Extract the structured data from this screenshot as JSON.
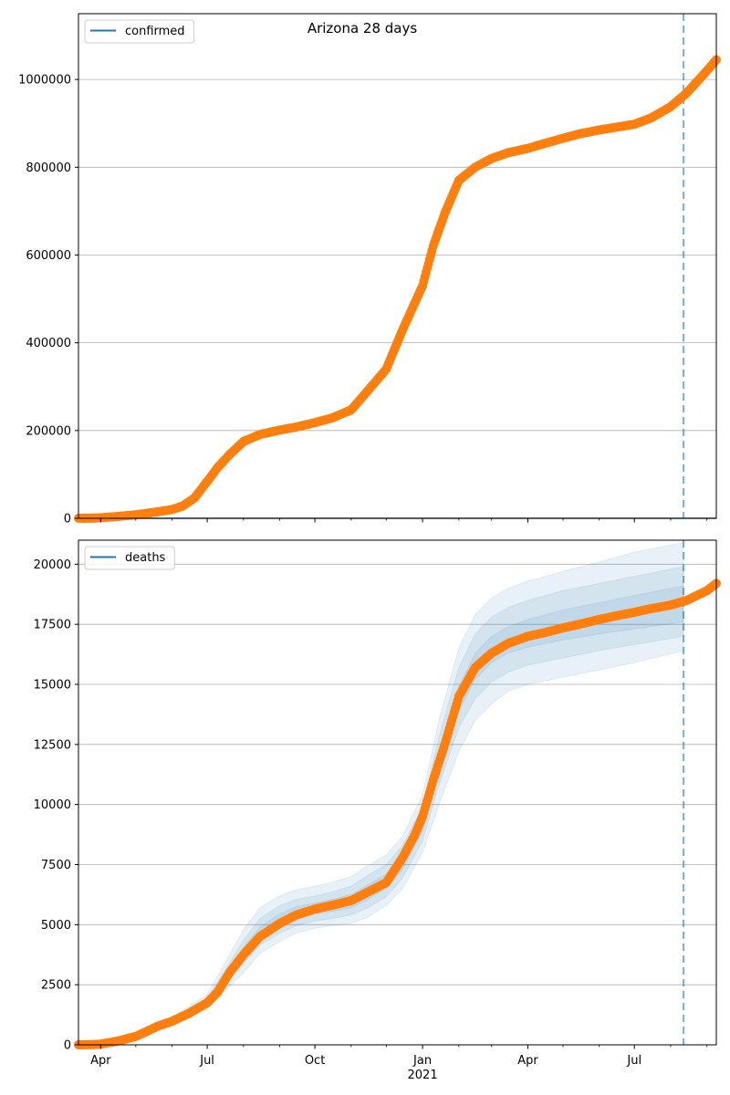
{
  "figure": {
    "title": "Arizona 28 days"
  },
  "colors": {
    "observed": "#ff7f0e",
    "model": "#1f77b4",
    "band": "#1f77b4",
    "grid": "#b0b0b0",
    "vline": "#1f77b4"
  },
  "x_axis": {
    "start": "2020-03-13",
    "end": "2021-09-09",
    "major_ticks": [
      {
        "date": "2020-04-01",
        "label": "Apr"
      },
      {
        "date": "2020-07-01",
        "label": "Jul"
      },
      {
        "date": "2020-10-01",
        "label": "Oct"
      },
      {
        "date": "2021-01-01",
        "label": "Jan",
        "sublabel": "2021"
      },
      {
        "date": "2021-04-01",
        "label": "Apr"
      },
      {
        "date": "2021-07-01",
        "label": "Jul"
      }
    ],
    "minor_ticks": [
      "2020-05-01",
      "2020-06-01",
      "2020-08-01",
      "2020-09-01",
      "2020-11-01",
      "2020-12-01",
      "2021-02-01",
      "2021-03-01",
      "2021-05-01",
      "2021-06-01",
      "2021-08-01",
      "2021-09-01"
    ],
    "forecast_start": "2021-08-12"
  },
  "chart_data": [
    {
      "type": "line",
      "legend": "confirmed",
      "legend_loc": "upper left",
      "grid": "y",
      "ylim": [
        0,
        1150000
      ],
      "yticks": [
        0,
        200000,
        400000,
        600000,
        800000,
        1000000
      ],
      "ytick_labels": [
        "0",
        "200000",
        "400000",
        "600000",
        "800000",
        "1000000"
      ],
      "model_line_value": 0,
      "observed": [
        [
          "2020-03-13",
          10
        ],
        [
          "2020-03-25",
          400
        ],
        [
          "2020-04-01",
          1300
        ],
        [
          "2020-04-15",
          4000
        ],
        [
          "2020-05-01",
          7900
        ],
        [
          "2020-05-15",
          13000
        ],
        [
          "2020-06-01",
          20000
        ],
        [
          "2020-06-10",
          28000
        ],
        [
          "2020-06-20",
          46000
        ],
        [
          "2020-07-01",
          84000
        ],
        [
          "2020-07-10",
          116000
        ],
        [
          "2020-07-20",
          145000
        ],
        [
          "2020-08-01",
          175000
        ],
        [
          "2020-08-15",
          191000
        ],
        [
          "2020-09-01",
          201000
        ],
        [
          "2020-09-15",
          208000
        ],
        [
          "2020-10-01",
          218000
        ],
        [
          "2020-10-15",
          228000
        ],
        [
          "2020-11-01",
          247000
        ],
        [
          "2020-11-15",
          290000
        ],
        [
          "2020-12-01",
          340000
        ],
        [
          "2020-12-15",
          430000
        ],
        [
          "2021-01-01",
          530000
        ],
        [
          "2021-01-10",
          620000
        ],
        [
          "2021-01-20",
          695000
        ],
        [
          "2021-02-01",
          770000
        ],
        [
          "2021-02-15",
          800000
        ],
        [
          "2021-03-01",
          820000
        ],
        [
          "2021-03-15",
          833000
        ],
        [
          "2021-04-01",
          843000
        ],
        [
          "2021-04-15",
          854000
        ],
        [
          "2021-05-01",
          866000
        ],
        [
          "2021-05-15",
          876000
        ],
        [
          "2021-06-01",
          885000
        ],
        [
          "2021-06-15",
          891000
        ],
        [
          "2021-07-01",
          898000
        ],
        [
          "2021-07-15",
          912000
        ],
        [
          "2021-08-01",
          938000
        ],
        [
          "2021-08-15",
          970000
        ],
        [
          "2021-09-01",
          1020000
        ],
        [
          "2021-09-09",
          1045000
        ]
      ]
    },
    {
      "type": "line",
      "legend": "deaths",
      "legend_loc": "upper left",
      "grid": "y",
      "ylim": [
        0,
        21000
      ],
      "yticks": [
        0,
        2500,
        5000,
        7500,
        10000,
        12500,
        15000,
        17500,
        20000
      ],
      "ytick_labels": [
        "0",
        "2500",
        "5000",
        "7500",
        "10000",
        "12500",
        "15000",
        "17500",
        "20000"
      ],
      "observed": [
        [
          "2020-03-13",
          0
        ],
        [
          "2020-03-25",
          10
        ],
        [
          "2020-04-01",
          30
        ],
        [
          "2020-04-15",
          150
        ],
        [
          "2020-05-01",
          350
        ],
        [
          "2020-05-10",
          550
        ],
        [
          "2020-05-20",
          780
        ],
        [
          "2020-06-01",
          980
        ],
        [
          "2020-06-15",
          1300
        ],
        [
          "2020-07-01",
          1750
        ],
        [
          "2020-07-10",
          2200
        ],
        [
          "2020-07-20",
          3000
        ],
        [
          "2020-08-01",
          3750
        ],
        [
          "2020-08-15",
          4500
        ],
        [
          "2020-09-01",
          5050
        ],
        [
          "2020-09-15",
          5400
        ],
        [
          "2020-10-01",
          5650
        ],
        [
          "2020-10-15",
          5800
        ],
        [
          "2020-11-01",
          6000
        ],
        [
          "2020-11-15",
          6350
        ],
        [
          "2020-12-01",
          6750
        ],
        [
          "2020-12-15",
          7800
        ],
        [
          "2020-12-25",
          8700
        ],
        [
          "2021-01-01",
          9500
        ],
        [
          "2021-01-10",
          11000
        ],
        [
          "2021-01-20",
          12500
        ],
        [
          "2021-02-01",
          14500
        ],
        [
          "2021-02-15",
          15700
        ],
        [
          "2021-03-01",
          16300
        ],
        [
          "2021-03-15",
          16700
        ],
        [
          "2021-04-01",
          17000
        ],
        [
          "2021-04-15",
          17150
        ],
        [
          "2021-05-01",
          17350
        ],
        [
          "2021-05-15",
          17500
        ],
        [
          "2021-06-01",
          17700
        ],
        [
          "2021-06-15",
          17850
        ],
        [
          "2021-07-01",
          18000
        ],
        [
          "2021-07-15",
          18150
        ],
        [
          "2021-08-01",
          18300
        ],
        [
          "2021-08-15",
          18500
        ],
        [
          "2021-09-01",
          18900
        ],
        [
          "2021-09-09",
          19200
        ]
      ],
      "bands": [
        {
          "lower": [
            [
              "2020-03-13",
              0
            ],
            [
              "2020-04-01",
              20
            ],
            [
              "2020-05-01",
              300
            ],
            [
              "2020-06-01",
              900
            ],
            [
              "2020-07-01",
              1500
            ],
            [
              "2020-07-15",
              2200
            ],
            [
              "2020-08-01",
              3000
            ],
            [
              "2020-08-15",
              3800
            ],
            [
              "2020-09-01",
              4300
            ],
            [
              "2020-09-15",
              4650
            ],
            [
              "2020-10-01",
              4850
            ],
            [
              "2020-10-15",
              4950
            ],
            [
              "2020-11-01",
              5050
            ],
            [
              "2020-11-15",
              5300
            ],
            [
              "2020-12-01",
              5800
            ],
            [
              "2020-12-15",
              6500
            ],
            [
              "2021-01-01",
              8000
            ],
            [
              "2021-01-15",
              10000
            ],
            [
              "2021-02-01",
              12200
            ],
            [
              "2021-02-15",
              13500
            ],
            [
              "2021-03-01",
              14200
            ],
            [
              "2021-03-15",
              14700
            ],
            [
              "2021-04-01",
              15000
            ],
            [
              "2021-05-01",
              15300
            ],
            [
              "2021-06-01",
              15600
            ],
            [
              "2021-07-01",
              15900
            ],
            [
              "2021-08-12",
              16400
            ]
          ],
          "upper": [
            [
              "2020-03-13",
              0
            ],
            [
              "2020-04-01",
              40
            ],
            [
              "2020-05-01",
              420
            ],
            [
              "2020-06-01",
              1150
            ],
            [
              "2020-07-01",
              2100
            ],
            [
              "2020-07-15",
              3300
            ],
            [
              "2020-08-01",
              4800
            ],
            [
              "2020-08-15",
              5700
            ],
            [
              "2020-09-01",
              6200
            ],
            [
              "2020-09-15",
              6450
            ],
            [
              "2020-10-01",
              6600
            ],
            [
              "2020-10-15",
              6750
            ],
            [
              "2020-11-01",
              7000
            ],
            [
              "2020-11-15",
              7450
            ],
            [
              "2020-12-01",
              7900
            ],
            [
              "2020-12-15",
              8700
            ],
            [
              "2021-01-01",
              10400
            ],
            [
              "2021-01-15",
              13500
            ],
            [
              "2021-02-01",
              16500
            ],
            [
              "2021-02-15",
              17900
            ],
            [
              "2021-03-01",
              18600
            ],
            [
              "2021-03-15",
              19000
            ],
            [
              "2021-04-01",
              19300
            ],
            [
              "2021-05-01",
              19700
            ],
            [
              "2021-06-01",
              20100
            ],
            [
              "2021-07-01",
              20500
            ],
            [
              "2021-08-12",
              20900
            ]
          ]
        },
        {
          "lower": [
            [
              "2020-03-13",
              0
            ],
            [
              "2020-04-01",
              25
            ],
            [
              "2020-05-01",
              330
            ],
            [
              "2020-06-01",
              950
            ],
            [
              "2020-07-01",
              1650
            ],
            [
              "2020-07-15",
              2500
            ],
            [
              "2020-08-01",
              3400
            ],
            [
              "2020-08-15",
              4150
            ],
            [
              "2020-09-01",
              4650
            ],
            [
              "2020-09-15",
              4950
            ],
            [
              "2020-10-01",
              5150
            ],
            [
              "2020-10-15",
              5250
            ],
            [
              "2020-11-01",
              5400
            ],
            [
              "2020-11-15",
              5700
            ],
            [
              "2020-12-01",
              6150
            ],
            [
              "2020-12-15",
              6950
            ],
            [
              "2021-01-01",
              8500
            ],
            [
              "2021-01-15",
              10800
            ],
            [
              "2021-02-01",
              13200
            ],
            [
              "2021-02-15",
              14400
            ],
            [
              "2021-03-01",
              15100
            ],
            [
              "2021-03-15",
              15500
            ],
            [
              "2021-04-01",
              15800
            ],
            [
              "2021-05-01",
              16100
            ],
            [
              "2021-06-01",
              16400
            ],
            [
              "2021-07-01",
              16650
            ],
            [
              "2021-08-12",
              17000
            ]
          ],
          "upper": [
            [
              "2020-03-13",
              0
            ],
            [
              "2020-04-01",
              35
            ],
            [
              "2020-05-01",
              390
            ],
            [
              "2020-06-01",
              1080
            ],
            [
              "2020-07-01",
              1950
            ],
            [
              "2020-07-15",
              3000
            ],
            [
              "2020-08-01",
              4350
            ],
            [
              "2020-08-15",
              5250
            ],
            [
              "2020-09-01",
              5800
            ],
            [
              "2020-09-15",
              6050
            ],
            [
              "2020-10-01",
              6200
            ],
            [
              "2020-10-15",
              6350
            ],
            [
              "2020-11-01",
              6600
            ],
            [
              "2020-11-15",
              7050
            ],
            [
              "2020-12-01",
              7500
            ],
            [
              "2020-12-15",
              8300
            ],
            [
              "2021-01-01",
              9900
            ],
            [
              "2021-01-15",
              12800
            ],
            [
              "2021-02-01",
              15700
            ],
            [
              "2021-02-15",
              17100
            ],
            [
              "2021-03-01",
              17800
            ],
            [
              "2021-03-15",
              18200
            ],
            [
              "2021-04-01",
              18500
            ],
            [
              "2021-05-01",
              18900
            ],
            [
              "2021-06-01",
              19200
            ],
            [
              "2021-07-01",
              19500
            ],
            [
              "2021-08-12",
              19900
            ]
          ]
        },
        {
          "lower": [
            [
              "2020-03-13",
              0
            ],
            [
              "2020-04-01",
              28
            ],
            [
              "2020-05-01",
              350
            ],
            [
              "2020-06-01",
              1000
            ],
            [
              "2020-07-01",
              1750
            ],
            [
              "2020-07-15",
              2700
            ],
            [
              "2020-08-01",
              3700
            ],
            [
              "2020-08-15",
              4450
            ],
            [
              "2020-09-01",
              4950
            ],
            [
              "2020-09-15",
              5250
            ],
            [
              "2020-10-01",
              5450
            ],
            [
              "2020-10-15",
              5550
            ],
            [
              "2020-11-01",
              5700
            ],
            [
              "2020-11-15",
              6050
            ],
            [
              "2020-12-01",
              6500
            ],
            [
              "2020-12-15",
              7300
            ],
            [
              "2021-01-01",
              8900
            ],
            [
              "2021-01-15",
              11400
            ],
            [
              "2021-02-01",
              13900
            ],
            [
              "2021-02-15",
              15200
            ],
            [
              "2021-03-01",
              15900
            ],
            [
              "2021-03-15",
              16300
            ],
            [
              "2021-04-01",
              16550
            ],
            [
              "2021-05-01",
              16850
            ],
            [
              "2021-06-01",
              17100
            ],
            [
              "2021-07-01",
              17300
            ],
            [
              "2021-08-12",
              17600
            ]
          ],
          "upper": [
            [
              "2020-03-13",
              0
            ],
            [
              "2020-04-01",
              32
            ],
            [
              "2020-05-01",
              370
            ],
            [
              "2020-06-01",
              1040
            ],
            [
              "2020-07-01",
              1850
            ],
            [
              "2020-07-15",
              2800
            ],
            [
              "2020-08-01",
              4050
            ],
            [
              "2020-08-15",
              4900
            ],
            [
              "2020-09-01",
              5450
            ],
            [
              "2020-09-15",
              5750
            ],
            [
              "2020-10-01",
              5900
            ],
            [
              "2020-10-15",
              6050
            ],
            [
              "2020-11-01",
              6250
            ],
            [
              "2020-11-15",
              6650
            ],
            [
              "2020-12-01",
              7100
            ],
            [
              "2020-12-15",
              7900
            ],
            [
              "2021-01-01",
              9400
            ],
            [
              "2021-01-15",
              12100
            ],
            [
              "2021-02-01",
              14900
            ],
            [
              "2021-02-15",
              16300
            ],
            [
              "2021-03-01",
              17000
            ],
            [
              "2021-03-15",
              17400
            ],
            [
              "2021-04-01",
              17700
            ],
            [
              "2021-05-01",
              18100
            ],
            [
              "2021-06-01",
              18400
            ],
            [
              "2021-07-01",
              18700
            ],
            [
              "2021-08-12",
              19100
            ]
          ]
        }
      ]
    }
  ]
}
